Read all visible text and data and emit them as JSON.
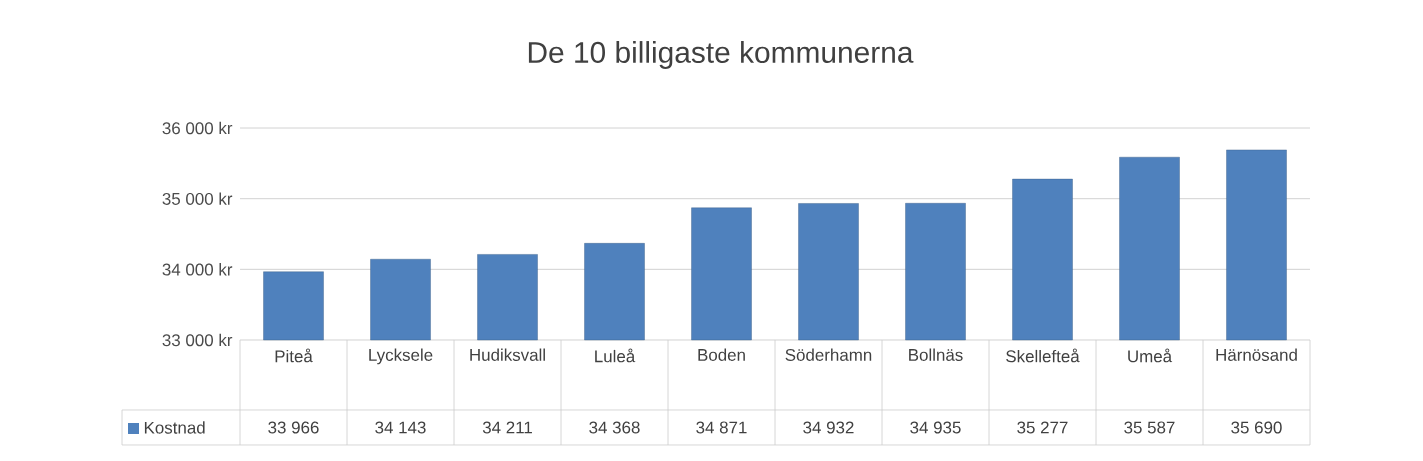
{
  "chart_data": {
    "type": "bar",
    "title": "De 10 billigaste kommunerna",
    "categories": [
      "Piteå",
      "Lycksele",
      "Hudiksvall",
      "Luleå",
      "Boden",
      "Söderhamn",
      "Bollnäs",
      "Skellefteå",
      "Umeå",
      "Härnösand"
    ],
    "series": [
      {
        "name": "Kostnad",
        "color": "#4f81bd",
        "values": [
          33966,
          34143,
          34211,
          34368,
          34871,
          34932,
          34935,
          35277,
          35587,
          35690
        ],
        "value_labels": [
          "33 966",
          "34 143",
          "34 211",
          "34 368",
          "34 871",
          "34 932",
          "34 935",
          "35 277",
          "35 587",
          "35 690"
        ]
      }
    ],
    "ylim": [
      33000,
      36000
    ],
    "yticks": [
      {
        "value": 33000,
        "label": "33 000 kr"
      },
      {
        "value": 34000,
        "label": "34 000 kr"
      },
      {
        "value": 35000,
        "label": "35 000 kr"
      },
      {
        "value": 36000,
        "label": "36 000 kr"
      }
    ],
    "grid": "y",
    "legend": "bottom"
  }
}
